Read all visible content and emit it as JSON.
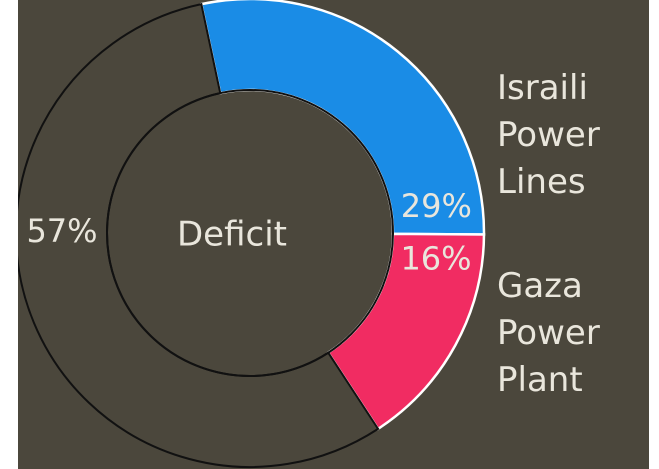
{
  "chart_data": {
    "type": "pie",
    "variant": "donut",
    "center_label": "Deficit",
    "slices": [
      {
        "label": "Israili Power Lines",
        "value": 29,
        "value_label": "29%",
        "color": "#1a8ce6"
      },
      {
        "label": "Gaza Power Plant",
        "value": 16,
        "value_label": "16%",
        "color": "#f12c62"
      },
      {
        "label": "Deficit",
        "value": 57,
        "value_label": "57%",
        "color": "#4b473c"
      }
    ],
    "legend": {
      "placement": "right",
      "entries": [
        {
          "lines": [
            "Israili",
            "Power",
            "Lines"
          ]
        },
        {
          "lines": [
            "Gaza",
            "Power",
            "Plant"
          ]
        }
      ]
    }
  },
  "colors": {
    "background": "#4b473c",
    "text": "#e9e6dc",
    "outline": "#111111"
  }
}
